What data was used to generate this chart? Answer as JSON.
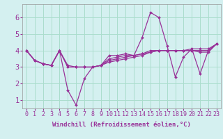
{
  "xlabel": "Windchill (Refroidissement éolien,°C)",
  "ylabel": "",
  "background_color": "#d4f0f0",
  "grid_color": "#aaddcc",
  "line_color": "#993399",
  "tick_color": "#993399",
  "x_values": [
    0,
    1,
    2,
    3,
    4,
    5,
    6,
    7,
    8,
    9,
    10,
    11,
    12,
    13,
    14,
    15,
    16,
    17,
    18,
    19,
    20,
    21,
    22,
    23
  ],
  "series": [
    [
      4.0,
      3.4,
      3.2,
      3.1,
      4.0,
      1.6,
      0.7,
      2.3,
      3.0,
      3.1,
      3.7,
      3.7,
      3.8,
      3.7,
      4.8,
      6.3,
      6.0,
      4.3,
      2.4,
      3.6,
      4.1,
      2.6,
      4.0,
      4.4
    ],
    [
      4.0,
      3.4,
      3.2,
      3.1,
      4.0,
      3.1,
      3.0,
      3.0,
      3.0,
      3.1,
      3.5,
      3.6,
      3.7,
      3.7,
      3.8,
      4.0,
      4.0,
      4.0,
      4.0,
      4.0,
      4.1,
      4.1,
      4.1,
      4.4
    ],
    [
      4.0,
      3.4,
      3.2,
      3.1,
      4.0,
      3.0,
      3.0,
      3.0,
      3.0,
      3.1,
      3.4,
      3.5,
      3.6,
      3.7,
      3.8,
      3.9,
      4.0,
      4.0,
      4.0,
      4.0,
      4.0,
      4.0,
      4.0,
      4.4
    ],
    [
      4.0,
      3.4,
      3.2,
      3.1,
      4.0,
      3.0,
      3.0,
      3.0,
      3.0,
      3.1,
      3.3,
      3.4,
      3.5,
      3.6,
      3.7,
      3.9,
      4.0,
      4.0,
      4.0,
      4.0,
      4.0,
      3.9,
      3.9,
      4.4
    ]
  ],
  "ylim": [
    0.5,
    6.8
  ],
  "yticks": [
    1,
    2,
    3,
    4,
    5,
    6
  ],
  "xlim": [
    -0.5,
    23.5
  ],
  "xticks": [
    0,
    1,
    2,
    3,
    4,
    5,
    6,
    7,
    8,
    9,
    10,
    11,
    12,
    13,
    14,
    15,
    16,
    17,
    18,
    19,
    20,
    21,
    22,
    23
  ],
  "xlabel_fontsize": 6.5,
  "tick_fontsize": 6.0,
  "ytick_fontsize": 7.5
}
